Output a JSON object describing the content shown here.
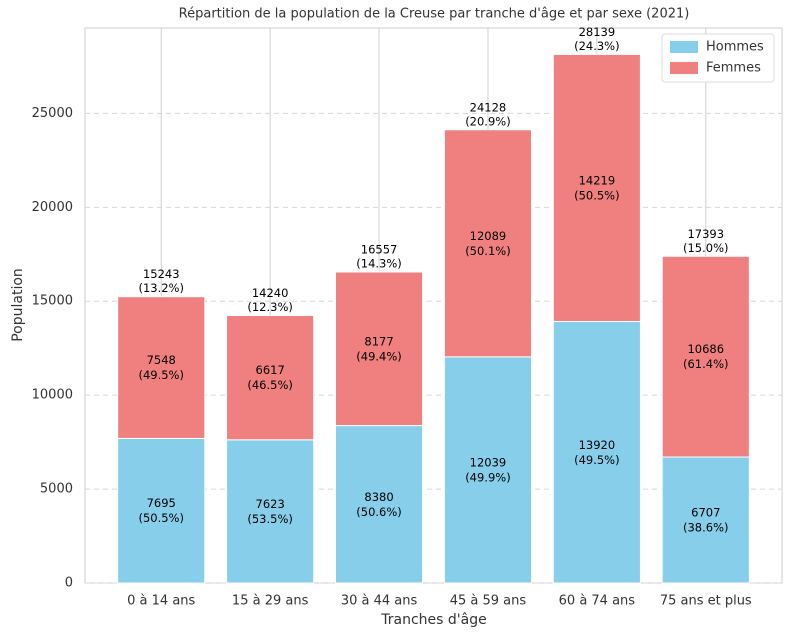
{
  "chart_data": {
    "type": "stacked_bar",
    "title": "Répartition de la population de la Creuse par tranche d'âge et par sexe (2021)",
    "xlabel": "Tranches d'âge",
    "ylabel": "Population",
    "categories": [
      "0 à 14 ans",
      "15 à 29 ans",
      "30 à 44 ans",
      "45 à 59 ans",
      "60 à 74 ans",
      "75 ans et plus"
    ],
    "series": [
      {
        "name": "Hommes",
        "color": "#87ceeb",
        "values": [
          7695,
          7623,
          8380,
          12039,
          13920,
          6707
        ],
        "share_labels": [
          "(50.5%)",
          "(53.5%)",
          "(50.6%)",
          "(49.9%)",
          "(49.5%)",
          "(38.6%)"
        ]
      },
      {
        "name": "Femmes",
        "color": "#f08080",
        "values": [
          7548,
          6617,
          8177,
          12089,
          14219,
          10686
        ],
        "share_labels": [
          "(49.5%)",
          "(46.5%)",
          "(49.4%)",
          "(50.1%)",
          "(50.5%)",
          "(61.4%)"
        ]
      }
    ],
    "totals": [
      15243,
      14240,
      16557,
      24128,
      28139,
      17393
    ],
    "total_share_labels": [
      "(13.2%)",
      "(12.3%)",
      "(14.3%)",
      "(20.9%)",
      "(24.3%)",
      "(15.0%)"
    ],
    "ylim": [
      0,
      29546
    ],
    "yticks": [
      0,
      5000,
      10000,
      15000,
      20000,
      25000
    ],
    "grid": true,
    "legend": "upper right"
  }
}
